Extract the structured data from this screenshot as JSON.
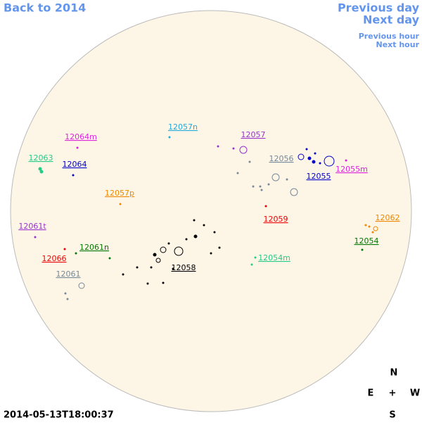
{
  "nav": {
    "back": "Back to 2014",
    "previous_day": "Previous day",
    "next_day": "Next day",
    "previous_hour": "Previous hour",
    "next_hour": "Next hour"
  },
  "timestamp": "2014-05-13T18:00:37",
  "compass": {
    "north": "N",
    "east": "E",
    "center": "+",
    "west": "W",
    "south": "S"
  },
  "regions": [
    {
      "label": "12064m",
      "color": "#dd22dd"
    },
    {
      "label": "12057n",
      "color": "#22aadd"
    },
    {
      "label": "12057",
      "color": "#9933cc"
    },
    {
      "label": "12063",
      "color": "#22cc88"
    },
    {
      "label": "12064",
      "color": "#0000cc"
    },
    {
      "label": "12056",
      "color": "#778899"
    },
    {
      "label": "12055",
      "color": "#0000cc"
    },
    {
      "label": "12055m",
      "color": "#dd22dd"
    },
    {
      "label": "12057p",
      "color": "#ee8800"
    },
    {
      "label": "12059",
      "color": "#ee0000"
    },
    {
      "label": "12062",
      "color": "#ee8800"
    },
    {
      "label": "12061t",
      "color": "#9933cc"
    },
    {
      "label": "12054",
      "color": "#007700"
    },
    {
      "label": "12061n",
      "color": "#007700"
    },
    {
      "label": "12054m",
      "color": "#22cc88"
    },
    {
      "label": "12066",
      "color": "#ee0000"
    },
    {
      "label": "12058",
      "color": "#000000"
    },
    {
      "label": "12061",
      "color": "#778899"
    }
  ]
}
